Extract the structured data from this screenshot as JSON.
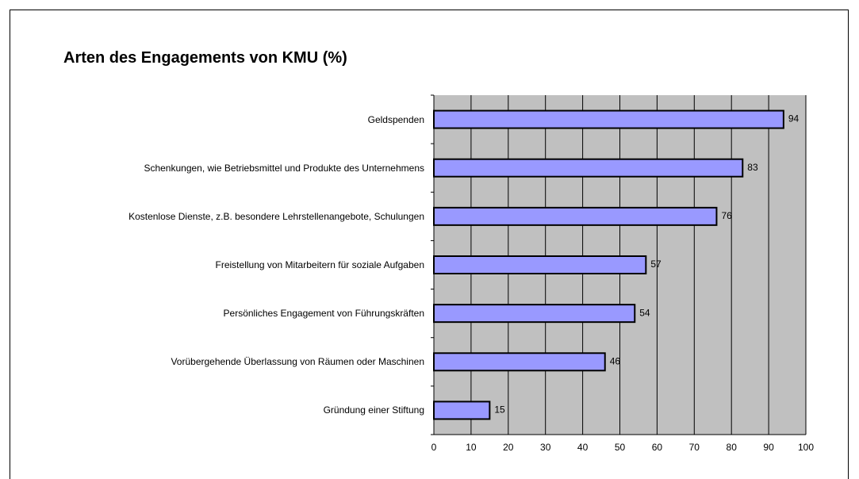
{
  "chart_data": {
    "type": "barh",
    "title": "Arten des Engagements von KMU (%)",
    "categories": [
      "Geldspenden",
      "Schenkungen, wie Betriebsmittel und Produkte des Unternehmens",
      "Kostenlose Dienste, z.B. besondere Lehrstellenangebote, Schulungen",
      "Freistellung von Mitarbeitern für soziale Aufgaben",
      "Persönliches Engagement von Führungskräften",
      "Vorübergehende Überlassung von Räumen oder Maschinen",
      "Gründung einer Stiftung"
    ],
    "values": [
      94,
      83,
      76,
      57,
      54,
      46,
      15
    ],
    "color": "#9999ff",
    "xlim": [
      0,
      100
    ],
    "xticks": [
      0,
      10,
      20,
      30,
      40,
      50,
      60,
      70,
      80,
      90,
      100
    ],
    "grid": true
  }
}
